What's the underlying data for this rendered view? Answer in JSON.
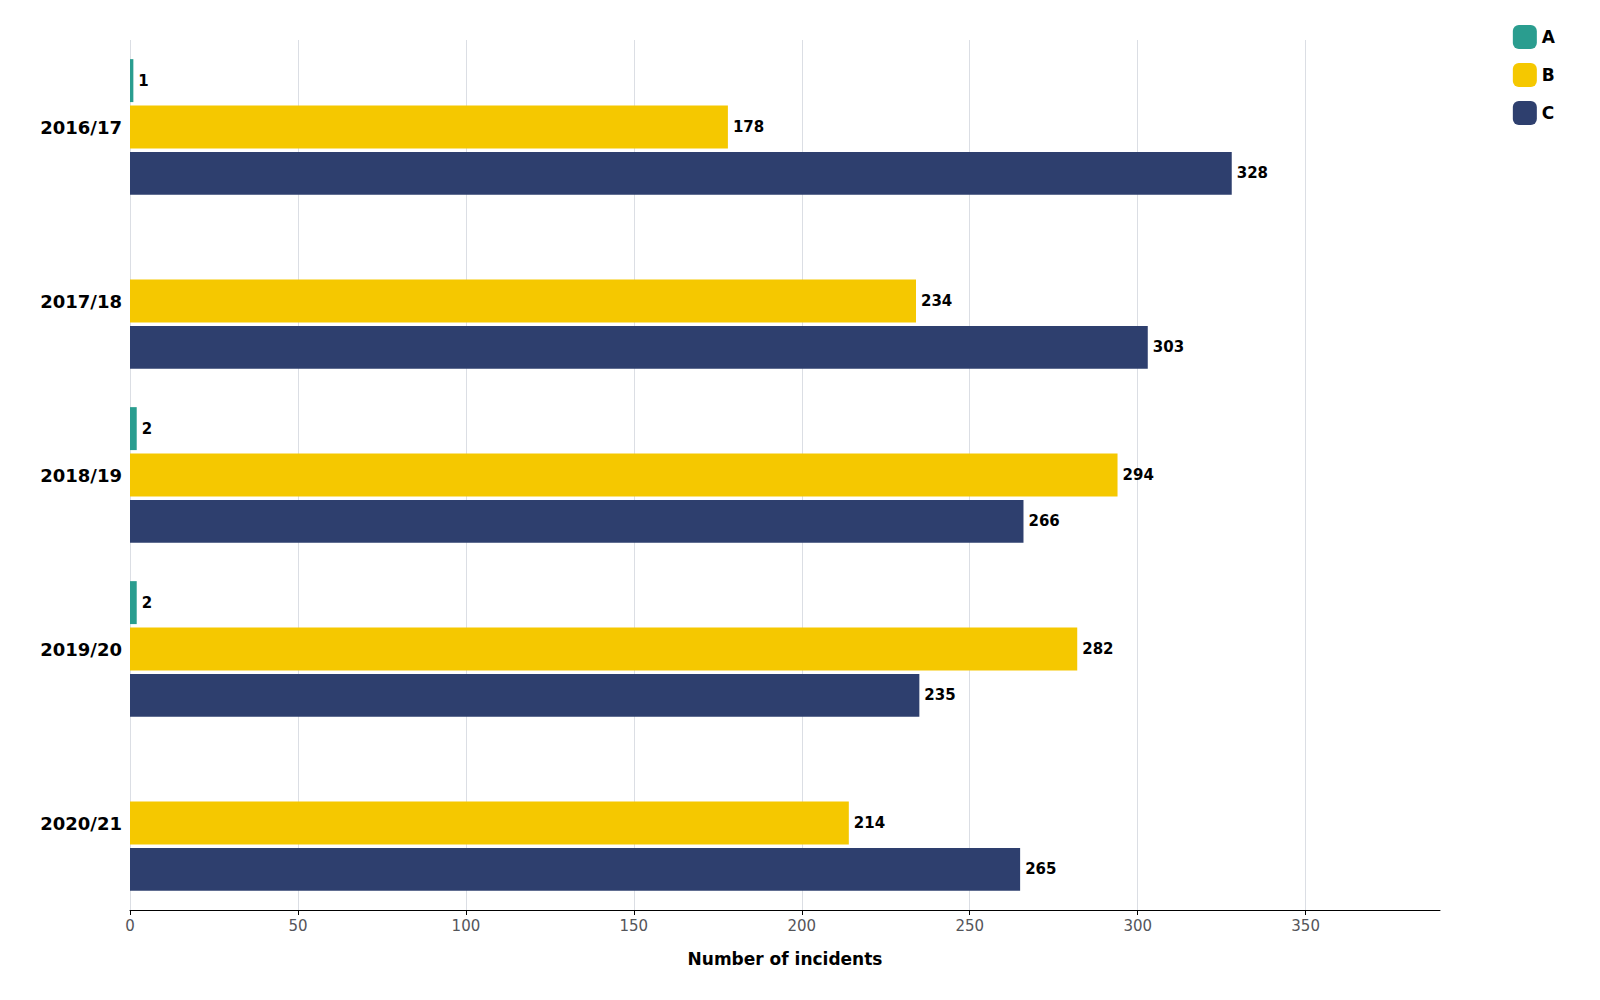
{
  "chart_data": {
    "type": "bar",
    "orientation": "horizontal",
    "categories": [
      "2016/17",
      "2017/18",
      "2018/19",
      "2019/20",
      "2020/21"
    ],
    "series": [
      {
        "name": "A",
        "color": "#2a9d8f",
        "values": [
          1,
          0,
          2,
          2,
          0
        ],
        "value_labels": [
          "1",
          null,
          "2",
          "2",
          null
        ]
      },
      {
        "name": "B",
        "color": "#f5c800",
        "values": [
          178,
          234,
          294,
          282,
          214
        ]
      },
      {
        "name": "C",
        "color": "#2e3f6e",
        "values": [
          328,
          303,
          266,
          235,
          265
        ]
      }
    ],
    "xlabel": "Number of incidents",
    "xlim": [
      0,
      390
    ],
    "xticks": [
      0,
      50,
      100,
      150,
      200,
      250,
      300,
      350
    ],
    "grid": true,
    "legend": "upper right",
    "data_labels": true
  }
}
